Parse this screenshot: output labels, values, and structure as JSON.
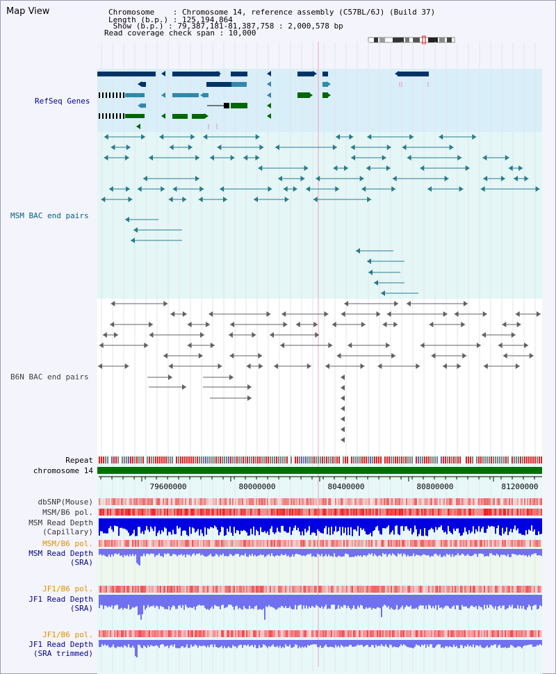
{
  "page": {
    "title": "Map View"
  },
  "header": {
    "chromosome_line": "Chromosome    : Chromosome 14, reference assembly (C57BL/6J) (Build 37)",
    "length_line": "Length (b.p.) : 125,194,864",
    "show_line": " Show (b.p.) : 79,387,181-81,387,758 : 2,000,578 bp",
    "span_line": "Read coverage check span : 10,000"
  },
  "tracks": {
    "refseq": "RefSeq Genes",
    "msm_bac": "MSM BAC end pairs",
    "b6n_bac": "B6N BAC end pairs",
    "repeat": "Repeat",
    "chromosome": "chromosome 14",
    "dbsnp": "dbSNP(Mouse)",
    "msm_b6_pol_1": "MSM/B6 pol.",
    "msm_depth_cap_1": "MSM Read Depth",
    "msm_depth_cap_2": "(Capillary)",
    "msm_b6_pol_2": "MSM/B6 pol.",
    "msm_depth_sra_1": "MSM Read Depth",
    "msm_depth_sra_2": "(SRA)",
    "jf1_pol_1": "JF1/B6 pol.",
    "jf1_depth_sra_1": "JF1 Read Depth",
    "jf1_depth_sra_2": "(SRA)",
    "jf1_pol_2": "JF1/B6 pol.",
    "jf1_depth_trim_1": "JF1 Read Depth",
    "jf1_depth_trim_2": "(SRA trimmed)"
  },
  "ruler": {
    "ticks": [
      "79600000",
      "80000000",
      "80400000",
      "80800000",
      "81200000"
    ]
  },
  "colors": {
    "refseq_label": "#00008b",
    "msm_label": "#006080",
    "b6n_label": "#404040",
    "orange_label": "#e09000",
    "gene_dark": "#003366",
    "gene_mid": "#3388aa",
    "gene_green": "#006600",
    "bac_msm": "#2a7a8a",
    "bac_b6n": "#606060",
    "chromosome_bar": "#007000",
    "depth_blue": "#0000e0",
    "depth_light": "#7070f0"
  }
}
